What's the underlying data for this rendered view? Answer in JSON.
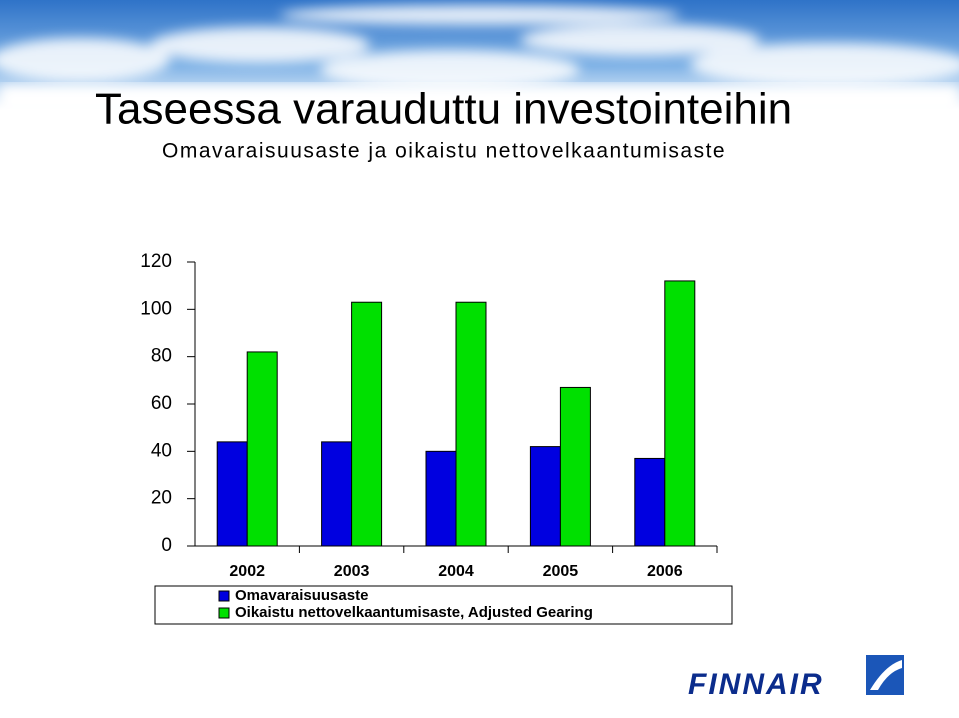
{
  "chart_data": {
    "type": "bar",
    "title": "Taseessa varauduttu investointeihin",
    "subtitle": "Omavaraisuusaste ja oikaistu nettovelkaantumisaste",
    "categories": [
      "2002",
      "2003",
      "2004",
      "2005",
      "2006"
    ],
    "series": [
      {
        "name": "Omavaraisuusaste",
        "color": "#0000e0",
        "values": [
          44,
          44,
          40,
          42,
          37
        ]
      },
      {
        "name": "Oikaistu nettovelkaantumisaste, Adjusted Gearing",
        "color": "#00e000",
        "values": [
          82,
          103,
          103,
          67,
          112
        ]
      }
    ],
    "ylim": [
      0,
      120
    ],
    "yticks": [
      0,
      20,
      40,
      60,
      80,
      100,
      120
    ],
    "grid": false
  },
  "logo": {
    "text": "FINNAIR"
  }
}
